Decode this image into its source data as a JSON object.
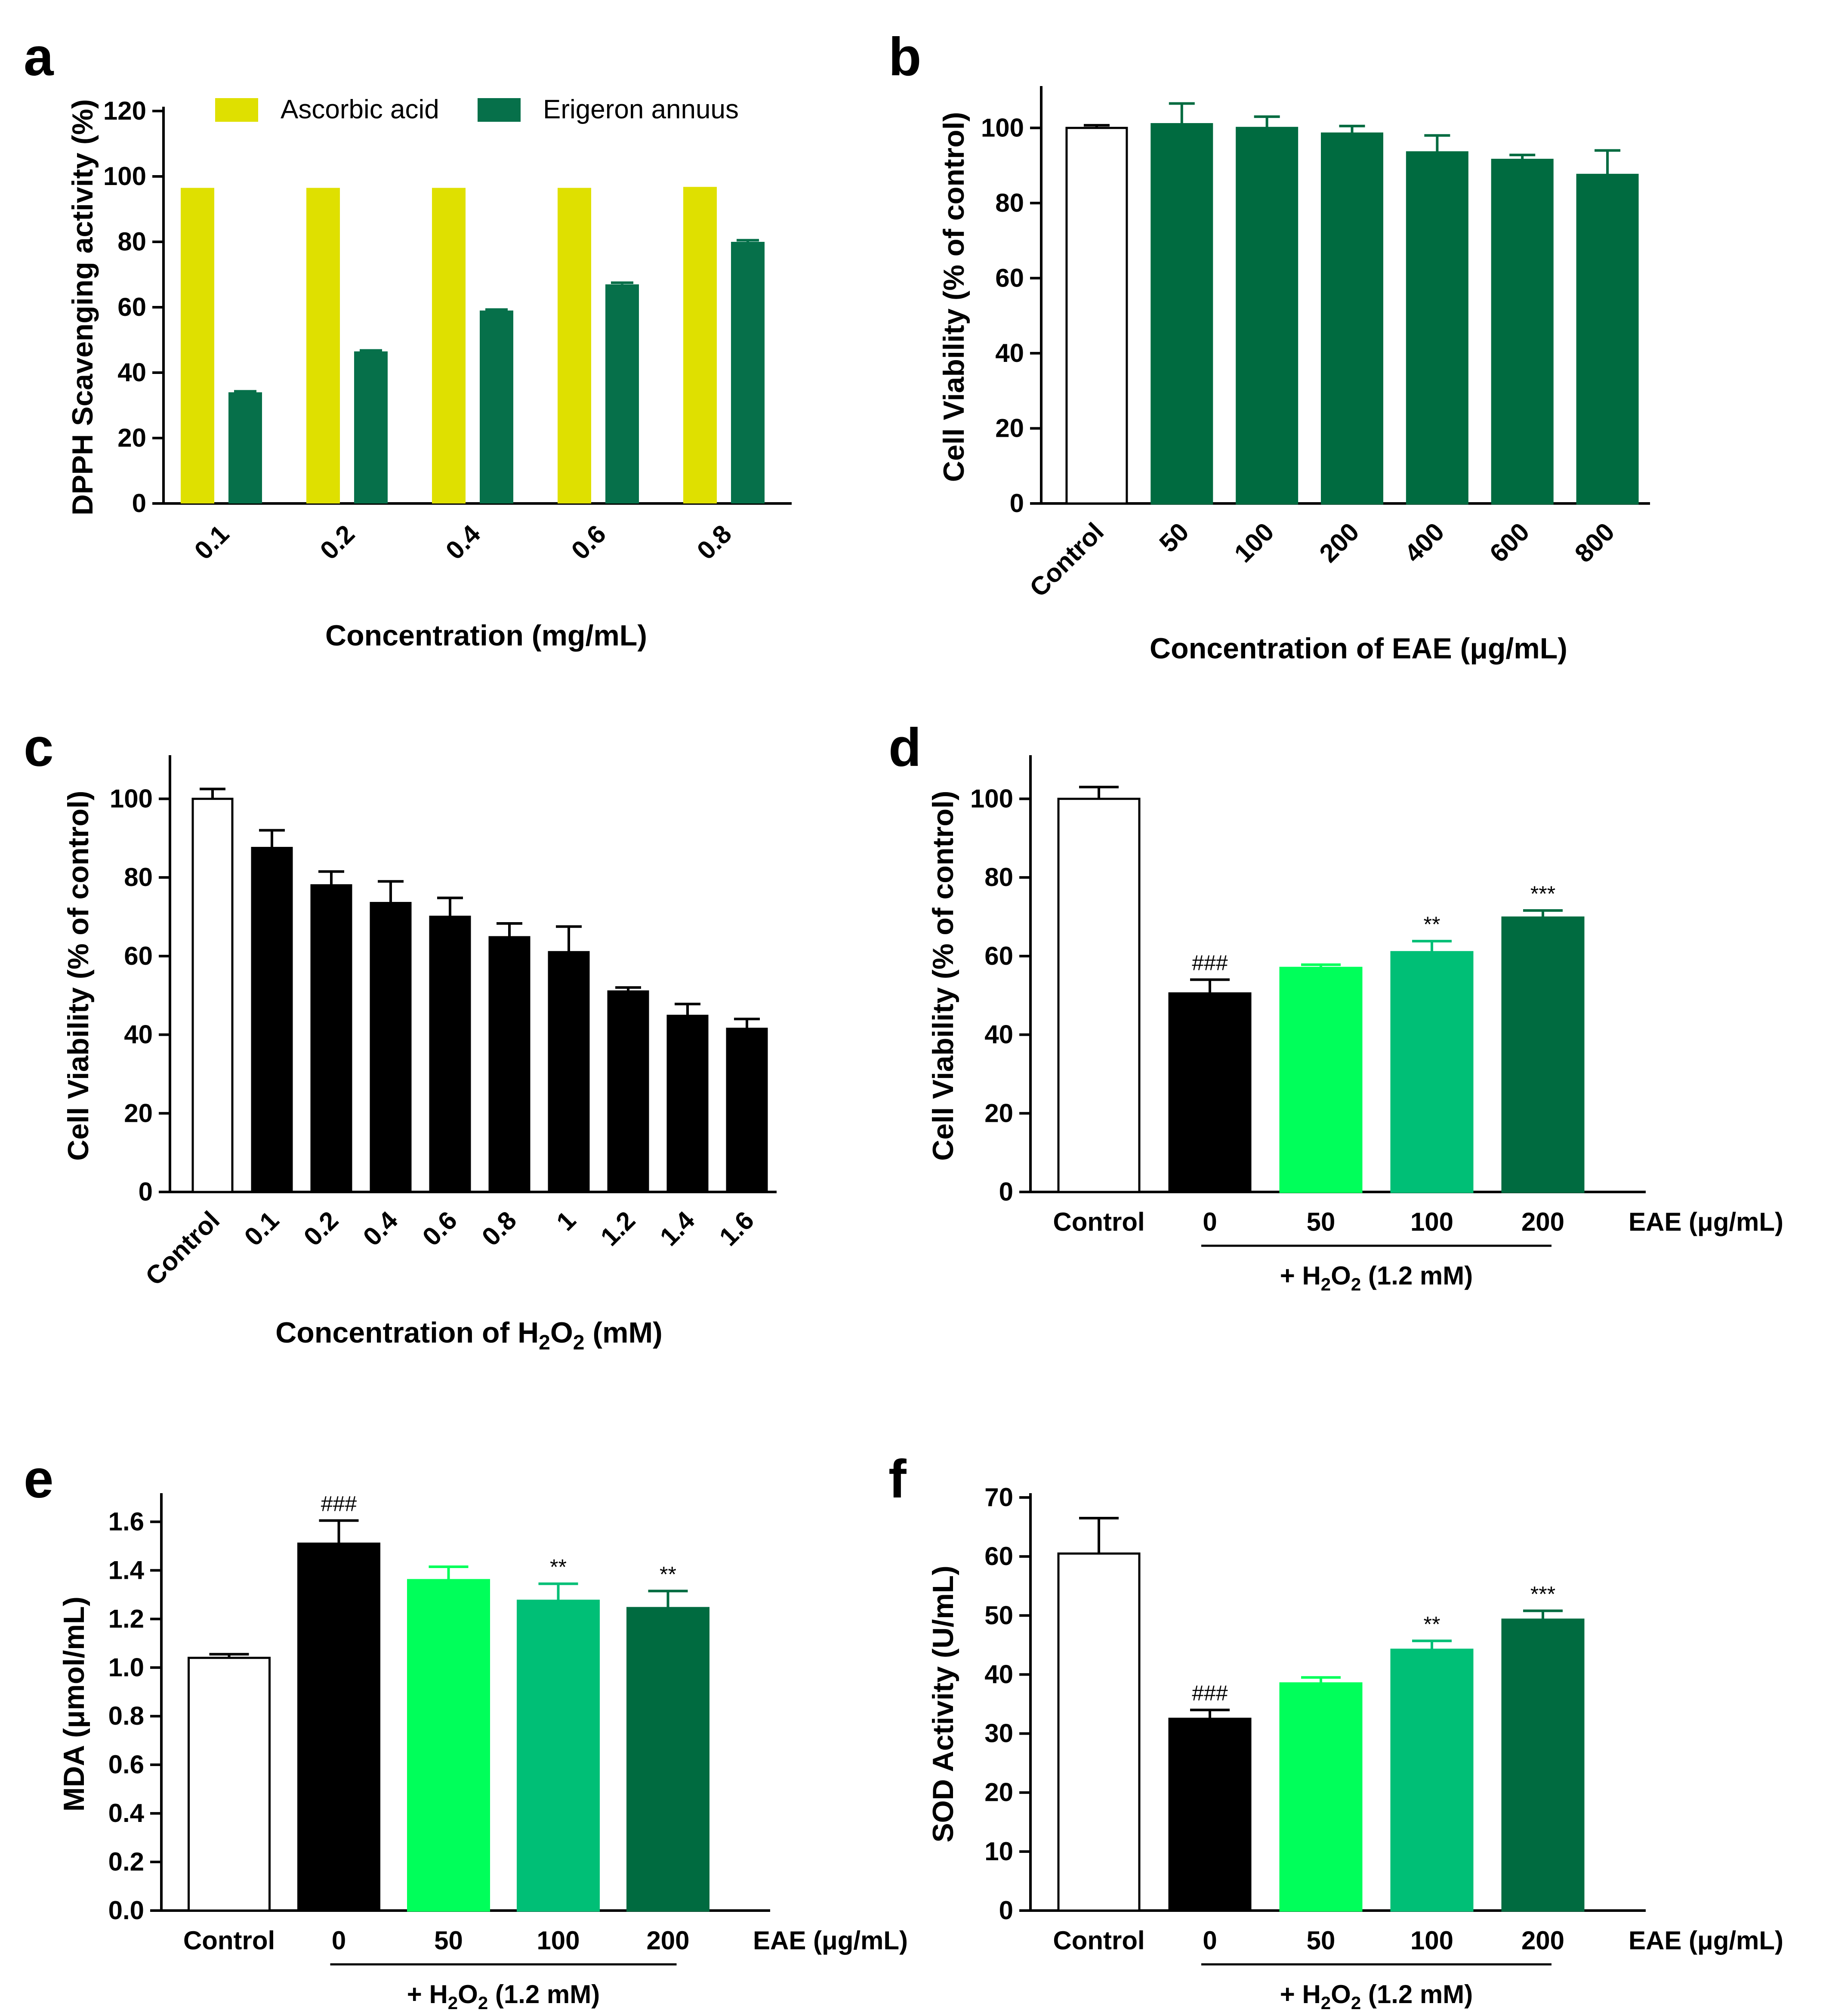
{
  "chart_data": [
    {
      "panel": "a",
      "type": "bar",
      "categories": [
        "0.1",
        "0.2",
        "0.4",
        "0.6",
        "0.8"
      ],
      "series": [
        {
          "name": "Ascorbic acid",
          "color": "#dfe000",
          "values": [
            96.5,
            96.5,
            96.5,
            96.5,
            96.8
          ],
          "errors": [
            0,
            0,
            0,
            0,
            0
          ]
        },
        {
          "name": "Erigeron annuus",
          "color": "#06704a",
          "values": [
            34,
            46.5,
            59,
            67,
            80
          ],
          "errors": [
            0.3,
            0.3,
            0.3,
            0.5,
            0.5
          ]
        }
      ],
      "xlabel": "Concentration (mg/mL)",
      "ylabel": "DPPH Scavenging activity (%)",
      "ylim": [
        0,
        120
      ],
      "yticks": [
        "0",
        "20",
        "40",
        "60",
        "80",
        "100",
        "120"
      ],
      "legend": "top"
    },
    {
      "panel": "b",
      "type": "bar",
      "categories": [
        "Control",
        "50",
        "100",
        "200",
        "400",
        "600",
        "800"
      ],
      "values": [
        100,
        101,
        100,
        98.5,
        93.5,
        91.5,
        87.5
      ],
      "errors": [
        0.7,
        5.5,
        3,
        2,
        4.5,
        1.3,
        6.5
      ],
      "colors": [
        "#ffffff",
        "#006b40",
        "#006b40",
        "#006b40",
        "#006b40",
        "#006b40",
        "#006b40"
      ],
      "xlabel": "Concentration of EAE (μg/mL)",
      "ylabel": "Cell Viability (% of control)",
      "ylim": [
        0,
        110
      ],
      "yticks": [
        "0",
        "20",
        "40",
        "60",
        "80",
        "100"
      ]
    },
    {
      "panel": "c",
      "type": "bar",
      "categories": [
        "Control",
        "0.1",
        "0.2",
        "0.4",
        "0.6",
        "0.8",
        "1",
        "1.2",
        "1.4",
        "1.6"
      ],
      "values": [
        100,
        87.5,
        78,
        73.5,
        70,
        64.8,
        61,
        51,
        44.8,
        41.5
      ],
      "errors": [
        2.5,
        4.5,
        3.5,
        5.5,
        4.8,
        3.5,
        6.5,
        1,
        3,
        2.5
      ],
      "colors": [
        "#ffffff",
        "#000000",
        "#000000",
        "#000000",
        "#000000",
        "#000000",
        "#000000",
        "#000000",
        "#000000",
        "#000000"
      ],
      "xlabel_main": "Concentration of H",
      "xlabel_sub": "2",
      "xlabel_rest": "O",
      "xlabel_sub2": "2",
      "xlabel_end": " (mM)",
      "ylabel": "Cell Viability (% of control)",
      "ylim": [
        0,
        110
      ],
      "yticks": [
        "0",
        "20",
        "40",
        "60",
        "80",
        "100"
      ]
    },
    {
      "panel": "d",
      "type": "bar",
      "categories": [
        "Control",
        "0",
        "50",
        "100",
        "200"
      ],
      "values": [
        100,
        50.5,
        57,
        61,
        69.8
      ],
      "errors": [
        3,
        3.5,
        0.8,
        2.8,
        1.8
      ],
      "colors": [
        "#ffffff",
        "#000000",
        "#00ff5a",
        "#00bf76",
        "#006b40"
      ],
      "annotations": [
        "",
        "###",
        "",
        "**",
        "***"
      ],
      "unit_label": "EAE (μg/mL)",
      "treatment_main": "+ H",
      "treatment_sub": "2",
      "treatment_mid": "O",
      "treatment_sub2": "2",
      "treatment_end": " (1.2 mM)",
      "ylabel": "Cell Viability (% of control)",
      "ylim": [
        0,
        110
      ],
      "yticks": [
        "0",
        "20",
        "40",
        "60",
        "80",
        "100"
      ]
    },
    {
      "panel": "e",
      "type": "bar",
      "categories": [
        "Control",
        "0",
        "50",
        "100",
        "200"
      ],
      "values": [
        1.04,
        1.51,
        1.36,
        1.275,
        1.245
      ],
      "errors": [
        0.015,
        0.095,
        0.055,
        0.07,
        0.07
      ],
      "colors": [
        "#ffffff",
        "#000000",
        "#00ff5a",
        "#00bf76",
        "#006b40"
      ],
      "annotations": [
        "",
        "###",
        "",
        "**",
        "**"
      ],
      "unit_label": "EAE (μg/mL)",
      "treatment_main": "+ H",
      "treatment_sub": "2",
      "treatment_mid": "O",
      "treatment_sub2": "2",
      "treatment_end": " (1.2 mM)",
      "ylabel": "MDA (μmol/mL)",
      "ylim": [
        0,
        1.7
      ],
      "yticks": [
        "0.0",
        "0.2",
        "0.4",
        "0.6",
        "0.8",
        "1.0",
        "1.2",
        "1.4",
        "1.6"
      ]
    },
    {
      "panel": "f",
      "type": "bar",
      "categories": [
        "Control",
        "0",
        "50",
        "100",
        "200"
      ],
      "values": [
        60.5,
        32.5,
        38.5,
        44.2,
        49.3
      ],
      "errors": [
        6,
        1.5,
        1,
        1.5,
        1.5
      ],
      "colors": [
        "#ffffff",
        "#000000",
        "#00ff5a",
        "#00bf76",
        "#006b40"
      ],
      "annotations": [
        "",
        "###",
        "",
        "**",
        "***"
      ],
      "unit_label": "EAE (μg/mL)",
      "treatment_main": "+ H",
      "treatment_sub": "2",
      "treatment_mid": "O",
      "treatment_sub2": "2",
      "treatment_end": " (1.2 mM)",
      "ylabel": "SOD Activity (U/mL)",
      "ylim": [
        0,
        70
      ],
      "yticks": [
        "0",
        "10",
        "20",
        "30",
        "40",
        "50",
        "60",
        "70"
      ]
    }
  ]
}
